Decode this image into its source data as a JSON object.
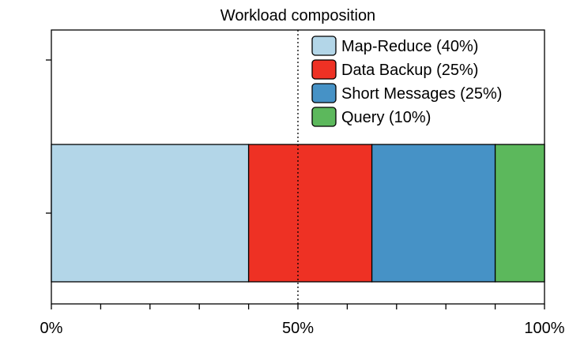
{
  "chart_data": {
    "type": "bar",
    "orientation": "horizontal",
    "stacked": true,
    "title": "Workload composition",
    "xlabel": "",
    "ylabel": "",
    "xlim": [
      0,
      100
    ],
    "x_tick_labels": [
      {
        "value": 0,
        "label": "0%"
      },
      {
        "value": 50,
        "label": "50%"
      },
      {
        "value": 100,
        "label": "100%"
      }
    ],
    "x_minor_tick_step": 10,
    "reference_line": 50,
    "grid": false,
    "legend_position": "top-right",
    "series": [
      {
        "name": "Map-Reduce (40%)",
        "value": 40,
        "color": "#b3d6e8"
      },
      {
        "name": "Data Backup (25%)",
        "value": 25,
        "color": "#ee3124"
      },
      {
        "name": "Short Messages (25%)",
        "value": 25,
        "color": "#4692c6"
      },
      {
        "name": "Query (10%)",
        "value": 10,
        "color": "#5cb85c"
      }
    ]
  }
}
